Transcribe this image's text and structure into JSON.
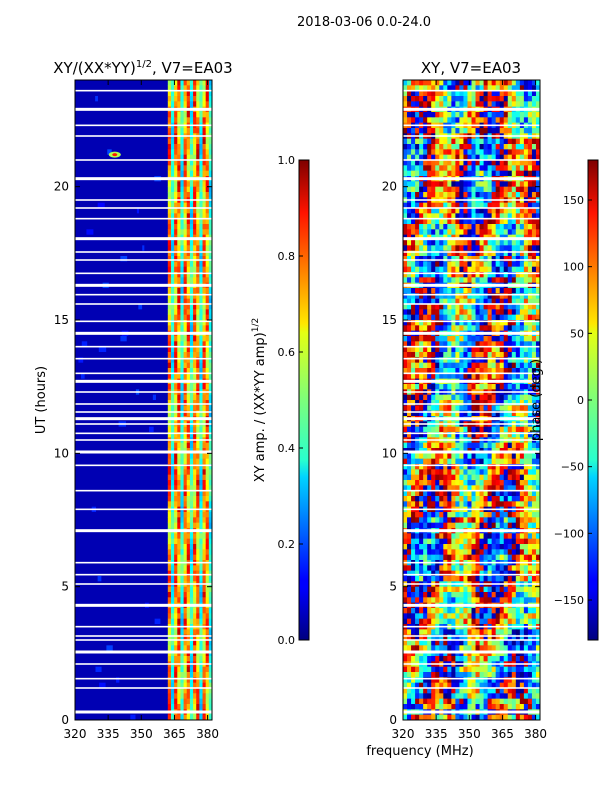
{
  "figure": {
    "suptitle": "2018-03-06 0.0-24.0",
    "shared_xlabel": "frequency (MHz)"
  },
  "chart_data": [
    {
      "type": "heatmap",
      "title": "XY/(XX*YY)",
      "title_superscript": "1/2",
      "title_suffix": ", V7=EA03",
      "xlabel": "",
      "ylabel": "UT (hours)",
      "xlim": [
        320,
        382
      ],
      "ylim": [
        0,
        24
      ],
      "xticks": [
        320,
        335,
        350,
        365,
        380
      ],
      "yticks": [
        0,
        5,
        10,
        15,
        20
      ],
      "colorbar": {
        "label": "XY amp. / (XX*YY amp)",
        "label_superscript": "1/2",
        "range": [
          0.0,
          1.0
        ],
        "ticks": [
          "0.0",
          "0.2",
          "0.4",
          "0.6",
          "0.8",
          "1.0"
        ],
        "tick_values": [
          0.0,
          0.2,
          0.4,
          0.6,
          0.8,
          1.0
        ]
      },
      "colormap": "jet",
      "description_values": {
        "background_level": 0.05,
        "band_start_mhz": 362,
        "band_level_range": [
          0.3,
          0.95
        ]
      }
    },
    {
      "type": "heatmap",
      "title": "XY, V7=EA03",
      "xlabel": "frequency (MHz)",
      "ylabel": "",
      "xlim": [
        320,
        382
      ],
      "ylim": [
        0,
        24
      ],
      "xticks": [
        320,
        335,
        350,
        365,
        380
      ],
      "yticks": [
        0,
        5,
        10,
        15,
        20
      ],
      "colorbar": {
        "label": "phase (deg.)",
        "range": [
          -180,
          180
        ],
        "ticks": [
          "150",
          "100",
          "50",
          "0",
          "−50",
          "−100",
          "−150"
        ],
        "tick_values": [
          150,
          100,
          50,
          0,
          -50,
          -100,
          -150
        ]
      },
      "colormap": "jet"
    }
  ],
  "gaps_hours": [
    0.3,
    1.2,
    1.55,
    2.1,
    2.55,
    3.0,
    3.15,
    3.5,
    4.3,
    5.1,
    5.45,
    5.9,
    7.1,
    7.9,
    8.6,
    9.55,
    10.05,
    10.5,
    10.75,
    11.1,
    11.3,
    11.55,
    11.85,
    12.3,
    12.7,
    13.0,
    13.55,
    14.0,
    14.5,
    14.95,
    15.6,
    15.95,
    16.3,
    16.75,
    17.25,
    17.55,
    18.05,
    18.8,
    19.2,
    19.5,
    20.3,
    21.0,
    21.9,
    22.3,
    22.9,
    23.6
  ]
}
